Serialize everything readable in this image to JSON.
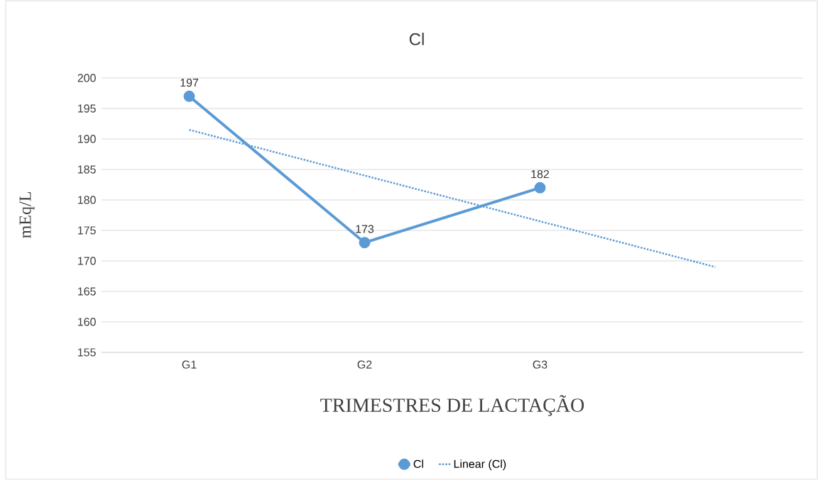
{
  "chart_data": {
    "type": "line",
    "title": "Cl",
    "xlabel": "TRIMESTRES DE LACTAÇÃO",
    "ylabel": "mEq/L",
    "categories": [
      "G1",
      "G2",
      "G3",
      null
    ],
    "series": [
      {
        "name": "Cl",
        "color": "#5b9bd5",
        "values": [
          197,
          173,
          182,
          null
        ],
        "marker": "circle",
        "line_style": "solid",
        "value_labels": [
          "197",
          "173",
          "182",
          null
        ]
      },
      {
        "name": "Linear (Cl)",
        "color": "#5b9bd5",
        "type": "line",
        "values": [
          191.5,
          184,
          176.5,
          169
        ],
        "marker": "none",
        "line_style": "dotted"
      }
    ],
    "ylim": [
      155,
      200
    ],
    "yticks": [
      155,
      160,
      165,
      170,
      175,
      180,
      185,
      190,
      195,
      200
    ],
    "grid": "y",
    "legend": "bottom"
  }
}
